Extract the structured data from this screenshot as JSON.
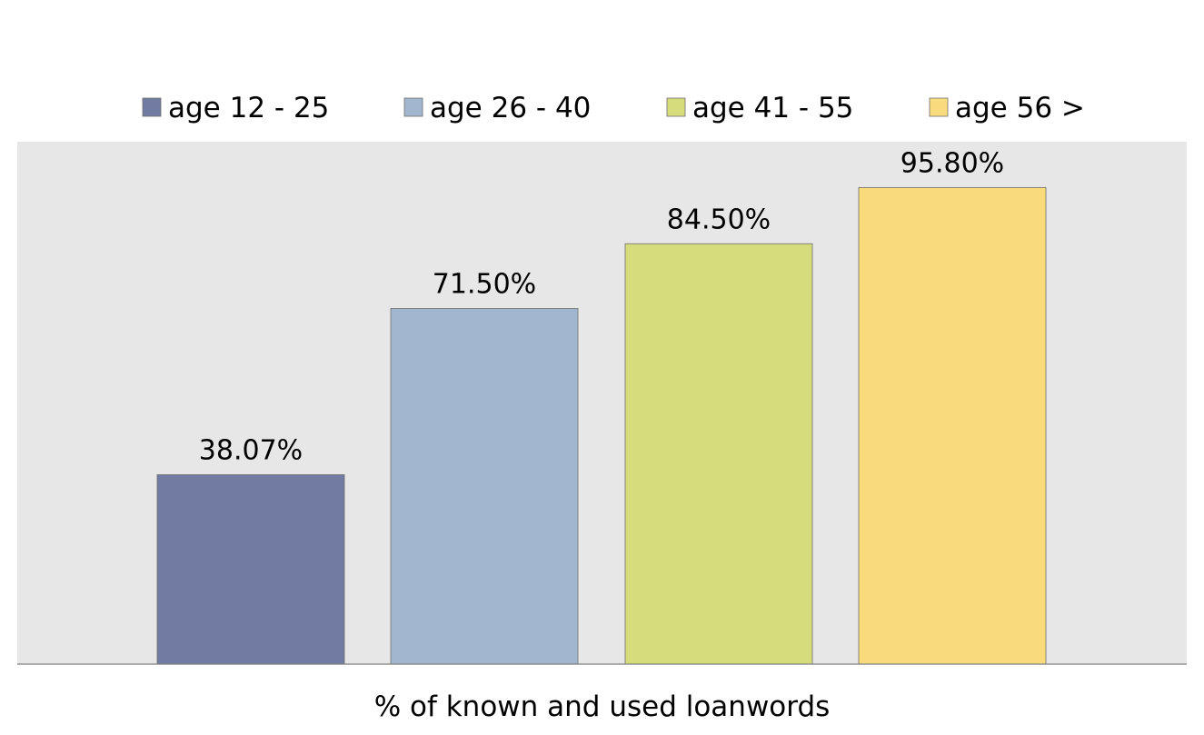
{
  "chart_data": {
    "type": "bar",
    "categories": [
      "% of known and used loanwords"
    ],
    "series": [
      {
        "name": "age 12 - 25",
        "values": [
          38.07
        ],
        "label": "38.07%",
        "color": "#727ca2"
      },
      {
        "name": "age 26 - 40",
        "values": [
          71.5
        ],
        "label": "71.50%",
        "color": "#a2b7cf"
      },
      {
        "name": "age 41 - 55",
        "values": [
          84.5
        ],
        "label": "84.50%",
        "color": "#d5dc7c"
      },
      {
        "name": "age 56 >",
        "values": [
          95.8
        ],
        "label": "95.80%",
        "color": "#f9da7c"
      }
    ],
    "xlabel": "% of known and used loanwords",
    "ylabel": "",
    "ylim": [
      0,
      105
    ],
    "legend_position": "top",
    "grid": false,
    "plot_background": "#e7e7e7"
  }
}
